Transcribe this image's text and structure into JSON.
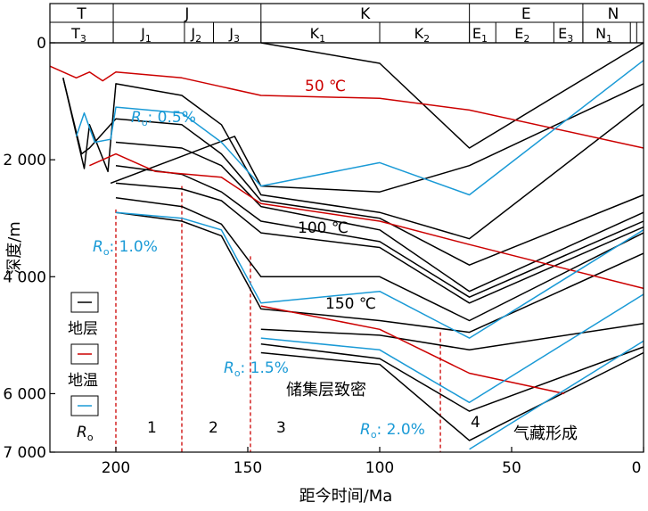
{
  "chart_data": {
    "type": "line",
    "title": "",
    "xlabel": "距今时间/Ma",
    "ylabel": "深度/m",
    "xlim": [
      225,
      0
    ],
    "ylim": [
      7000,
      0
    ],
    "x_ticks": [
      "200",
      "150",
      "100",
      "50",
      "0"
    ],
    "x_tick_values": [
      200,
      150,
      100,
      50,
      0
    ],
    "y_ticks": [
      "0",
      "2 000",
      "4 000",
      "6 000",
      "7 000"
    ],
    "y_tick_values": [
      0,
      2000,
      4000,
      6000,
      7000
    ],
    "periods": [
      {
        "label": "T",
        "start": 225,
        "end": 201
      },
      {
        "label": "J",
        "start": 201,
        "end": 145
      },
      {
        "label": "K",
        "start": 145,
        "end": 66
      },
      {
        "label": "E",
        "start": 66,
        "end": 23
      },
      {
        "label": "N",
        "start": 23,
        "end": 0
      }
    ],
    "epochs": [
      {
        "label": "T",
        "sub": "3",
        "start": 225,
        "end": 201
      },
      {
        "label": "J",
        "sub": "1",
        "start": 201,
        "end": 174
      },
      {
        "label": "J",
        "sub": "2",
        "start": 174,
        "end": 163
      },
      {
        "label": "J",
        "sub": "3",
        "start": 163,
        "end": 145
      },
      {
        "label": "K",
        "sub": "1",
        "start": 145,
        "end": 100
      },
      {
        "label": "K",
        "sub": "2",
        "start": 100,
        "end": 66
      },
      {
        "label": "E",
        "sub": "1",
        "start": 66,
        "end": 56
      },
      {
        "label": "E",
        "sub": "2",
        "start": 56,
        "end": 34
      },
      {
        "label": "E",
        "sub": "3",
        "start": 34,
        "end": 23
      },
      {
        "label": "N",
        "sub": "1",
        "start": 23,
        "end": 5
      },
      {
        "label": "",
        "sub": "",
        "start": 5,
        "end": 2.6
      },
      {
        "label": "",
        "sub": "",
        "start": 2.6,
        "end": 0
      }
    ],
    "series": [
      {
        "name": "地层",
        "color": "#000000",
        "lines": [
          [
            [
              145,
              0
            ],
            [
              100,
              350
            ],
            [
              66,
              1800
            ],
            [
              0,
              0
            ]
          ],
          [
            [
              202,
              2400
            ],
            [
              155,
              1600
            ],
            [
              145,
              2450
            ],
            [
              100,
              2550
            ],
            [
              66,
              2100
            ],
            [
              0,
              700
            ]
          ],
          [
            [
              220,
              600
            ],
            [
              212,
              2150
            ],
            [
              210,
              1400
            ],
            [
              203,
              2200
            ],
            [
              200,
              700
            ],
            [
              175,
              900
            ],
            [
              160,
              1400
            ],
            [
              145,
              2600
            ],
            [
              100,
              2900
            ],
            [
              66,
              3350
            ],
            [
              0,
              1050
            ]
          ],
          [
            [
              220,
              600
            ],
            [
              213,
              1900
            ],
            [
              210,
              1800
            ],
            [
              200,
              1300
            ],
            [
              175,
              1400
            ],
            [
              160,
              1900
            ],
            [
              145,
              2700
            ],
            [
              100,
              3000
            ],
            [
              66,
              3800
            ],
            [
              0,
              2600
            ]
          ],
          [
            [
              200,
              1700
            ],
            [
              175,
              1800
            ],
            [
              160,
              2100
            ],
            [
              145,
              2800
            ],
            [
              100,
              3200
            ],
            [
              66,
              4250
            ],
            [
              0,
              2900
            ]
          ],
          [
            [
              200,
              2100
            ],
            [
              175,
              2250
            ],
            [
              160,
              2550
            ],
            [
              145,
              3050
            ],
            [
              100,
              3400
            ],
            [
              66,
              4350
            ],
            [
              0,
              3050
            ]
          ],
          [
            [
              200,
              2400
            ],
            [
              175,
              2500
            ],
            [
              160,
              2700
            ],
            [
              145,
              3250
            ],
            [
              100,
              3500
            ],
            [
              66,
              4450
            ],
            [
              0,
              3150
            ]
          ],
          [
            [
              200,
              2650
            ],
            [
              175,
              2800
            ],
            [
              160,
              3100
            ],
            [
              145,
              4000
            ],
            [
              100,
              4000
            ],
            [
              66,
              4750
            ],
            [
              0,
              3250
            ]
          ],
          [
            [
              200,
              2900
            ],
            [
              175,
              3050
            ],
            [
              160,
              3300
            ],
            [
              145,
              4550
            ],
            [
              100,
              4750
            ],
            [
              66,
              4950
            ],
            [
              0,
              3600
            ]
          ],
          [
            [
              145,
              4900
            ],
            [
              100,
              5000
            ],
            [
              66,
              5250
            ],
            [
              0,
              4800
            ]
          ],
          [
            [
              145,
              5150
            ],
            [
              100,
              5400
            ],
            [
              66,
              6300
            ],
            [
              0,
              5200
            ]
          ],
          [
            [
              145,
              5300
            ],
            [
              100,
              5500
            ],
            [
              66,
              6800
            ],
            [
              0,
              5300
            ]
          ]
        ]
      },
      {
        "name": "地温",
        "color": "#cc0000",
        "lines": [
          [
            [
              225,
              400
            ],
            [
              215,
              600
            ],
            [
              210,
              500
            ],
            [
              205,
              650
            ],
            [
              200,
              500
            ],
            [
              175,
              600
            ],
            [
              160,
              750
            ],
            [
              145,
              900
            ],
            [
              100,
              950
            ],
            [
              66,
              1150
            ],
            [
              0,
              1800
            ]
          ],
          [
            [
              210,
              2100
            ],
            [
              200,
              1900
            ],
            [
              185,
              2200
            ],
            [
              160,
              2300
            ],
            [
              145,
              2750
            ],
            [
              100,
              3050
            ],
            [
              66,
              3450
            ],
            [
              0,
              4200
            ]
          ],
          [
            [
              145,
              4500
            ],
            [
              100,
              4900
            ],
            [
              66,
              5650
            ],
            [
              30,
              6000
            ]
          ]
        ]
      },
      {
        "name": "Ro",
        "color": "#1a9ad6",
        "lines": [
          [
            [
              215,
              1600
            ],
            [
              212,
              1200
            ],
            [
              208,
              1700
            ],
            [
              202,
              1650
            ],
            [
              200,
              1100
            ],
            [
              175,
              1200
            ],
            [
              160,
              1700
            ],
            [
              145,
              2450
            ],
            [
              100,
              2050
            ],
            [
              66,
              2600
            ],
            [
              0,
              300
            ]
          ],
          [
            [
              200,
              2900
            ],
            [
              175,
              3000
            ],
            [
              160,
              3200
            ],
            [
              145,
              4450
            ],
            [
              100,
              4250
            ],
            [
              66,
              5050
            ],
            [
              0,
              3200
            ]
          ],
          [
            [
              145,
              5050
            ],
            [
              100,
              5250
            ],
            [
              66,
              6150
            ],
            [
              0,
              4300
            ]
          ],
          [
            [
              66,
              6950
            ],
            [
              0,
              5100
            ]
          ]
        ]
      }
    ],
    "stage_boundaries": [
      200,
      175,
      149,
      77
    ],
    "annotations": {
      "iso_50": "50 ℃",
      "iso_100": "100 ℃",
      "iso_150": "150 ℃",
      "ro_05_prefix": "R",
      "ro_05_sub": "o",
      "ro_05_value": ": 0.5%",
      "ro_10_prefix": "R",
      "ro_10_sub": "o",
      "ro_10_value": ": 1.0%",
      "ro_15_prefix": "R",
      "ro_15_sub": "o",
      "ro_15_value": ": 1.5%",
      "ro_20_prefix": "R",
      "ro_20_sub": "o",
      "ro_20_value": ": 2.0%",
      "reservoir_dense": "储集层致密",
      "gas_formation": "气藏形成",
      "stage_1": "1",
      "stage_2": "2",
      "stage_3": "3",
      "stage_4": "4"
    },
    "legend": {
      "position": "bottom-left",
      "items": [
        {
          "label": "地层",
          "color": "#000000"
        },
        {
          "label": "地温",
          "color": "#cc0000"
        },
        {
          "label_main": "R",
          "label_sub": "o",
          "color": "#1a9ad6"
        }
      ]
    },
    "grid": false
  }
}
